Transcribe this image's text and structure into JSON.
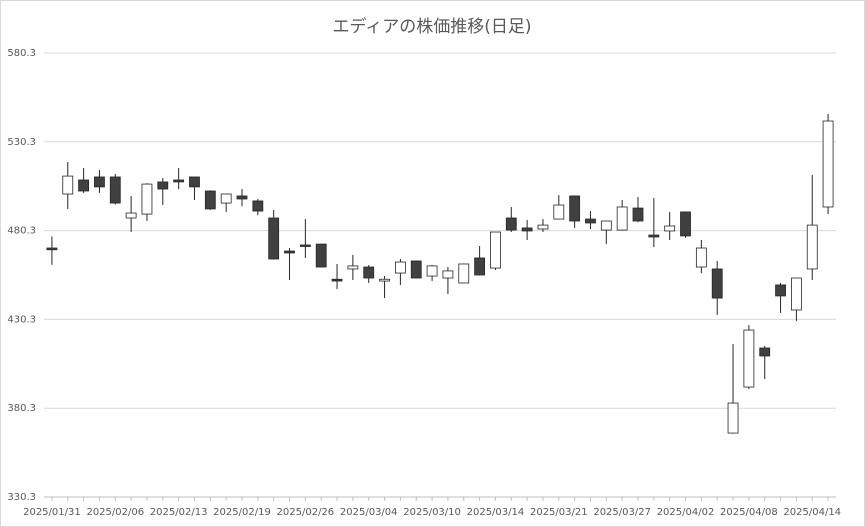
{
  "chart_data": {
    "type": "candlestick",
    "title": "エディアの株価推移(日足)",
    "categories": [
      "2025/01/31",
      null,
      null,
      null,
      "2025/02/06",
      null,
      null,
      null,
      "2025/02/13",
      null,
      null,
      null,
      "2025/02/19",
      null,
      null,
      null,
      "2025/02/26",
      null,
      null,
      null,
      "2025/03/04",
      null,
      null,
      null,
      "2025/03/10",
      null,
      null,
      null,
      "2025/03/14",
      null,
      null,
      null,
      "2025/03/21",
      null,
      null,
      null,
      "2025/03/27",
      null,
      null,
      null,
      "2025/04/02",
      null,
      null,
      null,
      "2025/04/08",
      null,
      null,
      null,
      "2025/04/14",
      null
    ],
    "open": [
      470.5,
      500.9,
      508.8,
      510.5,
      510.5,
      487.4,
      489.6,
      507.7,
      508.8,
      510.5,
      502.6,
      495.8,
      499.8,
      497.0,
      487.4,
      468.8,
      472.2,
      472.7,
      452.9,
      458.7,
      459.8,
      451.9,
      456.4,
      463.2,
      454.7,
      453.6,
      450.8,
      464.9,
      459.2,
      487.4,
      481.8,
      481.2,
      486.8,
      499.8,
      486.8,
      480.6,
      480.6,
      493.0,
      477.8,
      480.1,
      490.8,
      459.8,
      458.7,
      366.3,
      392.2,
      414.2,
      449.7,
      435.6,
      458.7,
      493.6
    ],
    "high": [
      477.0,
      518.9,
      515.5,
      514.4,
      512.2,
      499.8,
      507.0,
      509.9,
      515.5,
      510.5,
      503.0,
      501.2,
      503.7,
      498.1,
      491.9,
      470.5,
      486.8,
      472.8,
      461.5,
      466.6,
      460.9,
      454.7,
      464.3,
      463.5,
      460.9,
      459.8,
      461.8,
      471.6,
      479.5,
      493.6,
      486.3,
      486.8,
      500.3,
      500.0,
      491.3,
      485.8,
      497.5,
      499.2,
      498.6,
      490.8,
      491.0,
      475.0,
      463.2,
      416.4,
      427.1,
      415.3,
      450.8,
      453.6,
      511.6,
      546.0
    ],
    "low": [
      461.0,
      492.5,
      501.5,
      501.5,
      495.0,
      479.5,
      485.7,
      494.7,
      503.7,
      497.5,
      492.0,
      490.8,
      494.1,
      489.0,
      464.0,
      452.5,
      464.9,
      459.5,
      447.4,
      452.5,
      450.8,
      442.3,
      449.7,
      453.4,
      451.9,
      444.6,
      450.6,
      455.0,
      458.1,
      479.5,
      475.0,
      479.5,
      486.8,
      481.8,
      481.2,
      472.7,
      480.3,
      485.0,
      471.0,
      475.0,
      476.2,
      456.4,
      432.8,
      366.0,
      391.1,
      396.7,
      433.9,
      429.4,
      452.5,
      489.6
    ],
    "close": [
      469.5,
      511.0,
      502.6,
      504.9,
      495.8,
      490.2,
      506.5,
      503.7,
      507.7,
      504.9,
      492.5,
      500.9,
      498.1,
      491.3,
      464.3,
      467.7,
      471.6,
      459.8,
      451.9,
      460.4,
      453.6,
      452.9,
      462.6,
      453.6,
      460.4,
      457.6,
      461.5,
      455.3,
      479.5,
      480.6,
      480.1,
      483.4,
      494.7,
      485.7,
      484.6,
      485.7,
      493.6,
      485.7,
      476.7,
      482.9,
      477.3,
      470.5,
      442.3,
      383.2,
      424.3,
      409.7,
      443.5,
      453.6,
      483.4,
      542.0
    ],
    "up_color": "#ffffff",
    "down_color": "#404040",
    "line_color": "#262626",
    "ylim": [
      330.3,
      580.3
    ],
    "yticks": [
      330.3,
      380.3,
      430.3,
      480.3,
      530.3,
      580.3
    ],
    "grid": true
  }
}
